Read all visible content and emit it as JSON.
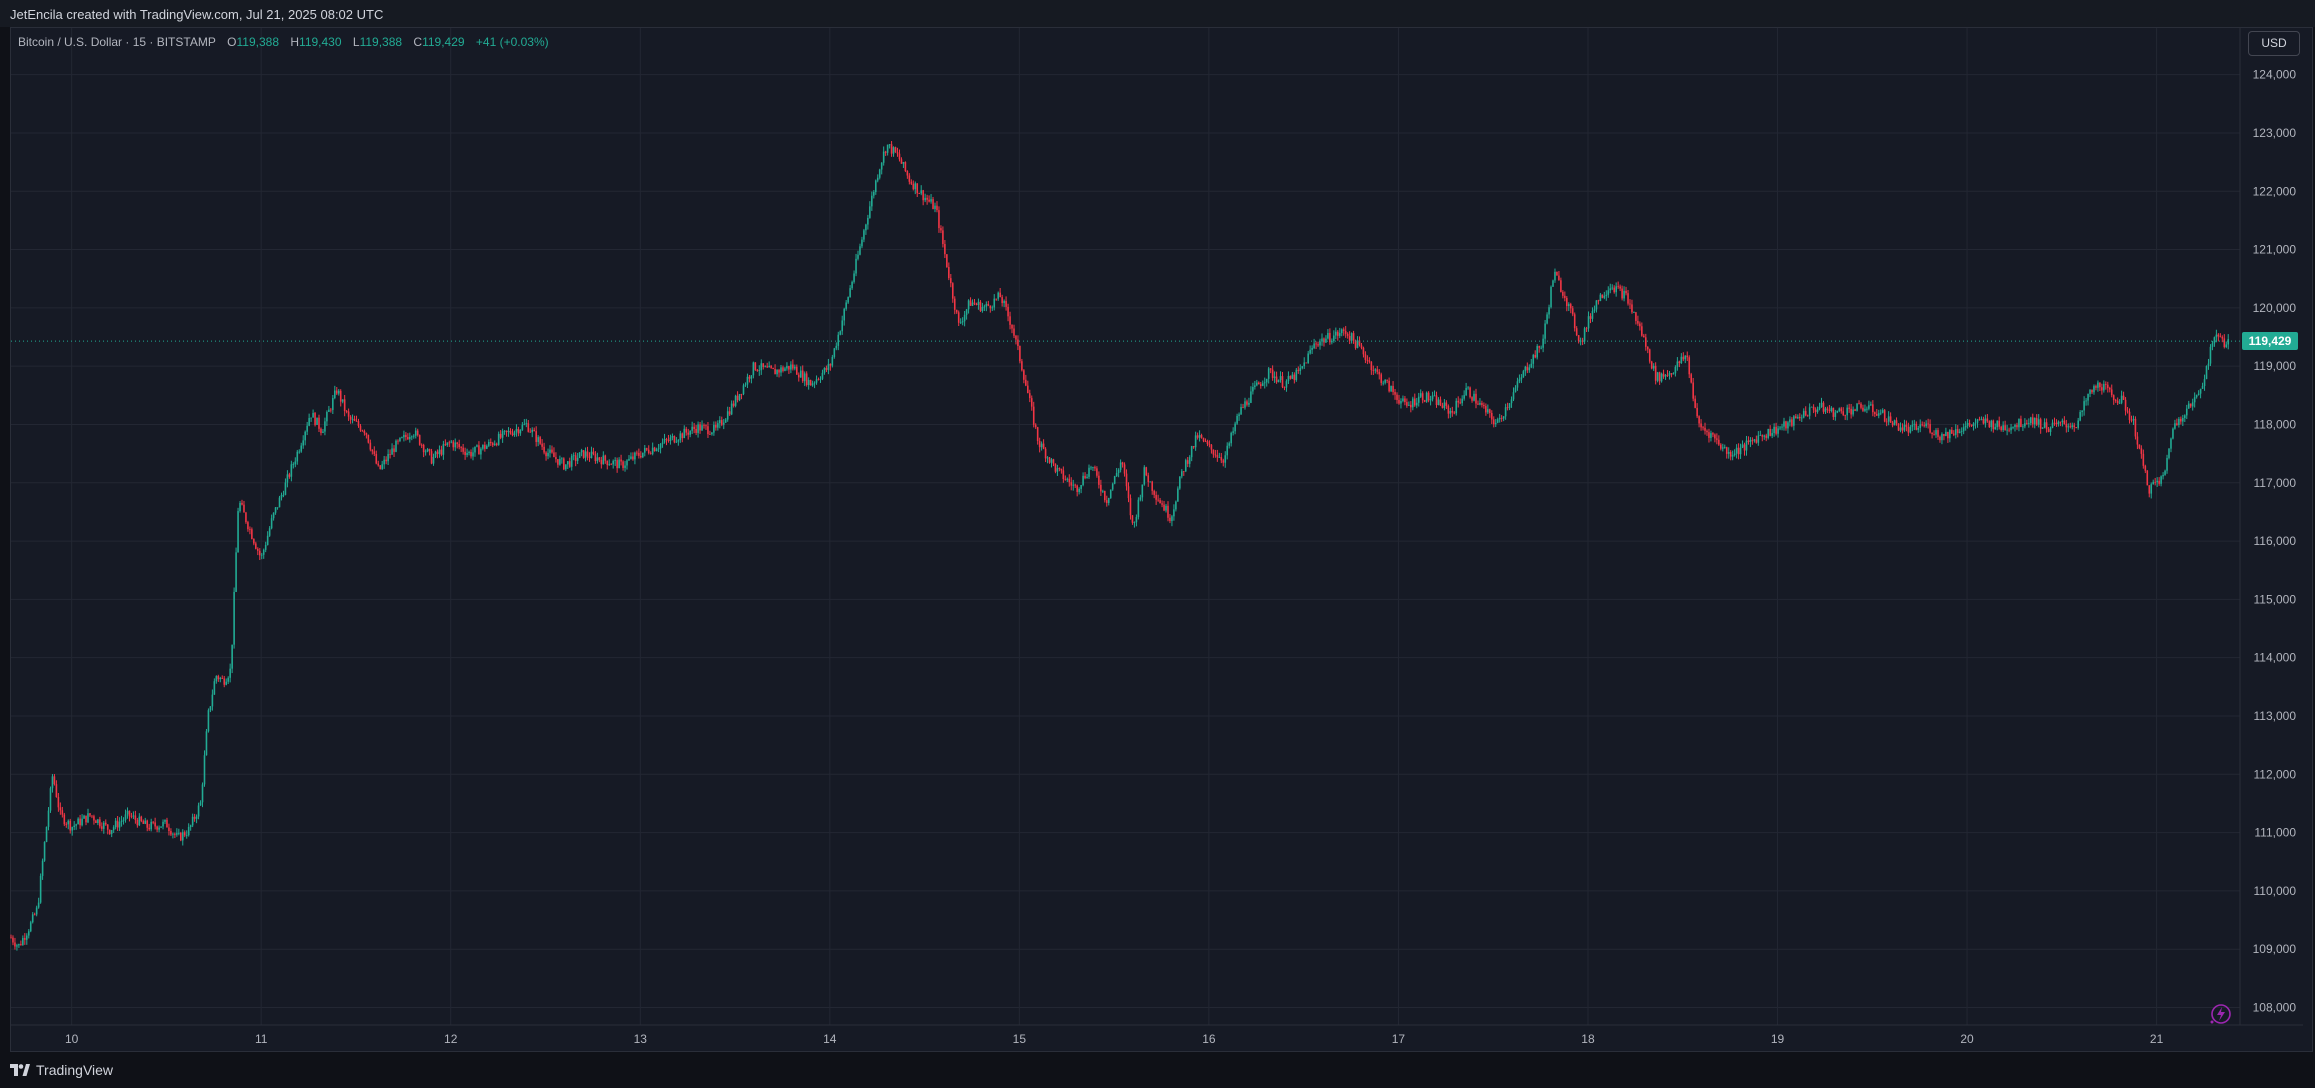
{
  "header": {
    "attribution": "JetEncila created with TradingView.com, Jul 21, 2025 08:02 UTC"
  },
  "legend": {
    "symbol": "Bitcoin / U.S. Dollar · 15 · BITSTAMP",
    "open_label": "O",
    "open": "119,388",
    "high_label": "H",
    "high": "119,430",
    "low_label": "L",
    "low": "119,388",
    "close_label": "C",
    "close": "119,429",
    "change": "+41 (+0.03%)"
  },
  "price_scale": {
    "currency": "USD",
    "last_price_tag": "119,429"
  },
  "footer": {
    "brand": "TradingView"
  },
  "colors": {
    "up": "#22ab94",
    "down": "#f23645",
    "grid": "#232733",
    "text": "#b2b5be",
    "accent_bolt": "#9c27b0"
  },
  "icons": [
    "tradingview-logo-icon",
    "bolt-icon"
  ],
  "chart_data": {
    "type": "candlestick",
    "title": "",
    "interval": "15",
    "x_axis_ticks": [
      "10",
      "11",
      "12",
      "13",
      "14",
      "15",
      "16",
      "17",
      "18",
      "19",
      "20",
      "21"
    ],
    "y_axis_ticks": [
      "108,000",
      "109,000",
      "110,000",
      "111,000",
      "112,000",
      "113,000",
      "114,000",
      "115,000",
      "116,000",
      "117,000",
      "118,000",
      "119,000",
      "120,000",
      "121,000",
      "122,000",
      "123,000",
      "124,000"
    ],
    "ylim": [
      107700,
      124800
    ],
    "xlim_days": [
      9.68,
      21.44
    ],
    "grid": true,
    "last_price": 119429,
    "price_path": [
      [
        9.68,
        109200
      ],
      [
        9.72,
        109050
      ],
      [
        9.78,
        109400
      ],
      [
        9.82,
        109700
      ],
      [
        9.86,
        110900
      ],
      [
        9.9,
        112000
      ],
      [
        9.94,
        111300
      ],
      [
        10.0,
        111100
      ],
      [
        10.1,
        111300
      ],
      [
        10.2,
        111050
      ],
      [
        10.3,
        111300
      ],
      [
        10.4,
        111100
      ],
      [
        10.5,
        111150
      ],
      [
        10.56,
        110900
      ],
      [
        10.62,
        111050
      ],
      [
        10.68,
        111500
      ],
      [
        10.72,
        113000
      ],
      [
        10.76,
        113700
      ],
      [
        10.8,
        113600
      ],
      [
        10.84,
        113800
      ],
      [
        10.88,
        116700
      ],
      [
        10.94,
        116200
      ],
      [
        11.0,
        115700
      ],
      [
        11.06,
        116400
      ],
      [
        11.12,
        116900
      ],
      [
        11.2,
        117600
      ],
      [
        11.26,
        118200
      ],
      [
        11.32,
        117900
      ],
      [
        11.4,
        118600
      ],
      [
        11.46,
        118100
      ],
      [
        11.55,
        117900
      ],
      [
        11.62,
        117200
      ],
      [
        11.7,
        117600
      ],
      [
        11.8,
        117900
      ],
      [
        11.9,
        117400
      ],
      [
        12.0,
        117700
      ],
      [
        12.1,
        117500
      ],
      [
        12.2,
        117650
      ],
      [
        12.3,
        117850
      ],
      [
        12.4,
        118000
      ],
      [
        12.5,
        117550
      ],
      [
        12.6,
        117300
      ],
      [
        12.7,
        117500
      ],
      [
        12.8,
        117400
      ],
      [
        12.9,
        117300
      ],
      [
        13.0,
        117500
      ],
      [
        13.1,
        117650
      ],
      [
        13.2,
        117800
      ],
      [
        13.3,
        117950
      ],
      [
        13.4,
        117900
      ],
      [
        13.5,
        118400
      ],
      [
        13.6,
        119000
      ],
      [
        13.7,
        118900
      ],
      [
        13.8,
        119000
      ],
      [
        13.9,
        118700
      ],
      [
        14.0,
        119000
      ],
      [
        14.05,
        119600
      ],
      [
        14.12,
        120500
      ],
      [
        14.2,
        121600
      ],
      [
        14.26,
        122400
      ],
      [
        14.3,
        122800
      ],
      [
        14.36,
        122600
      ],
      [
        14.42,
        122200
      ],
      [
        14.5,
        121900
      ],
      [
        14.56,
        121700
      ],
      [
        14.62,
        120700
      ],
      [
        14.68,
        119700
      ],
      [
        14.74,
        120100
      ],
      [
        14.82,
        120000
      ],
      [
        14.9,
        120200
      ],
      [
        14.96,
        119700
      ],
      [
        15.02,
        118900
      ],
      [
        15.1,
        117700
      ],
      [
        15.2,
        117200
      ],
      [
        15.3,
        116900
      ],
      [
        15.38,
        117300
      ],
      [
        15.46,
        116700
      ],
      [
        15.54,
        117400
      ],
      [
        15.6,
        116200
      ],
      [
        15.66,
        117200
      ],
      [
        15.72,
        116800
      ],
      [
        15.8,
        116400
      ],
      [
        15.86,
        117200
      ],
      [
        15.94,
        117800
      ],
      [
        16.0,
        117600
      ],
      [
        16.08,
        117400
      ],
      [
        16.16,
        118200
      ],
      [
        16.24,
        118600
      ],
      [
        16.32,
        118900
      ],
      [
        16.4,
        118700
      ],
      [
        16.48,
        118900
      ],
      [
        16.56,
        119400
      ],
      [
        16.64,
        119500
      ],
      [
        16.72,
        119600
      ],
      [
        16.8,
        119300
      ],
      [
        16.88,
        118900
      ],
      [
        16.96,
        118600
      ],
      [
        17.04,
        118300
      ],
      [
        17.12,
        118500
      ],
      [
        17.2,
        118400
      ],
      [
        17.28,
        118200
      ],
      [
        17.36,
        118600
      ],
      [
        17.44,
        118300
      ],
      [
        17.52,
        118000
      ],
      [
        17.6,
        118500
      ],
      [
        17.68,
        119000
      ],
      [
        17.76,
        119400
      ],
      [
        17.82,
        120600
      ],
      [
        17.88,
        120200
      ],
      [
        17.96,
        119400
      ],
      [
        18.04,
        120100
      ],
      [
        18.12,
        120400
      ],
      [
        18.2,
        120200
      ],
      [
        18.28,
        119600
      ],
      [
        18.36,
        118800
      ],
      [
        18.44,
        118900
      ],
      [
        18.52,
        119200
      ],
      [
        18.58,
        118000
      ],
      [
        18.66,
        117800
      ],
      [
        18.74,
        117500
      ],
      [
        18.82,
        117600
      ],
      [
        18.9,
        117800
      ],
      [
        18.98,
        117900
      ],
      [
        19.06,
        118000
      ],
      [
        19.14,
        118200
      ],
      [
        19.22,
        118300
      ],
      [
        19.3,
        118200
      ],
      [
        19.38,
        118250
      ],
      [
        19.46,
        118300
      ],
      [
        19.54,
        118200
      ],
      [
        19.62,
        118000
      ],
      [
        19.7,
        117900
      ],
      [
        19.78,
        118000
      ],
      [
        19.86,
        117800
      ],
      [
        19.94,
        117900
      ],
      [
        20.02,
        118000
      ],
      [
        20.1,
        118050
      ],
      [
        20.18,
        117950
      ],
      [
        20.26,
        118000
      ],
      [
        20.34,
        118100
      ],
      [
        20.42,
        117950
      ],
      [
        20.5,
        118000
      ],
      [
        20.58,
        118000
      ],
      [
        20.64,
        118500
      ],
      [
        20.7,
        118700
      ],
      [
        20.76,
        118500
      ],
      [
        20.82,
        118400
      ],
      [
        20.88,
        118000
      ],
      [
        20.92,
        117400
      ],
      [
        20.96,
        116900
      ],
      [
        21.0,
        117000
      ],
      [
        21.04,
        117100
      ],
      [
        21.08,
        117900
      ],
      [
        21.14,
        118200
      ],
      [
        21.2,
        118400
      ],
      [
        21.24,
        118700
      ],
      [
        21.28,
        119200
      ],
      [
        21.32,
        119600
      ],
      [
        21.36,
        119388
      ],
      [
        21.38,
        119429
      ]
    ]
  }
}
